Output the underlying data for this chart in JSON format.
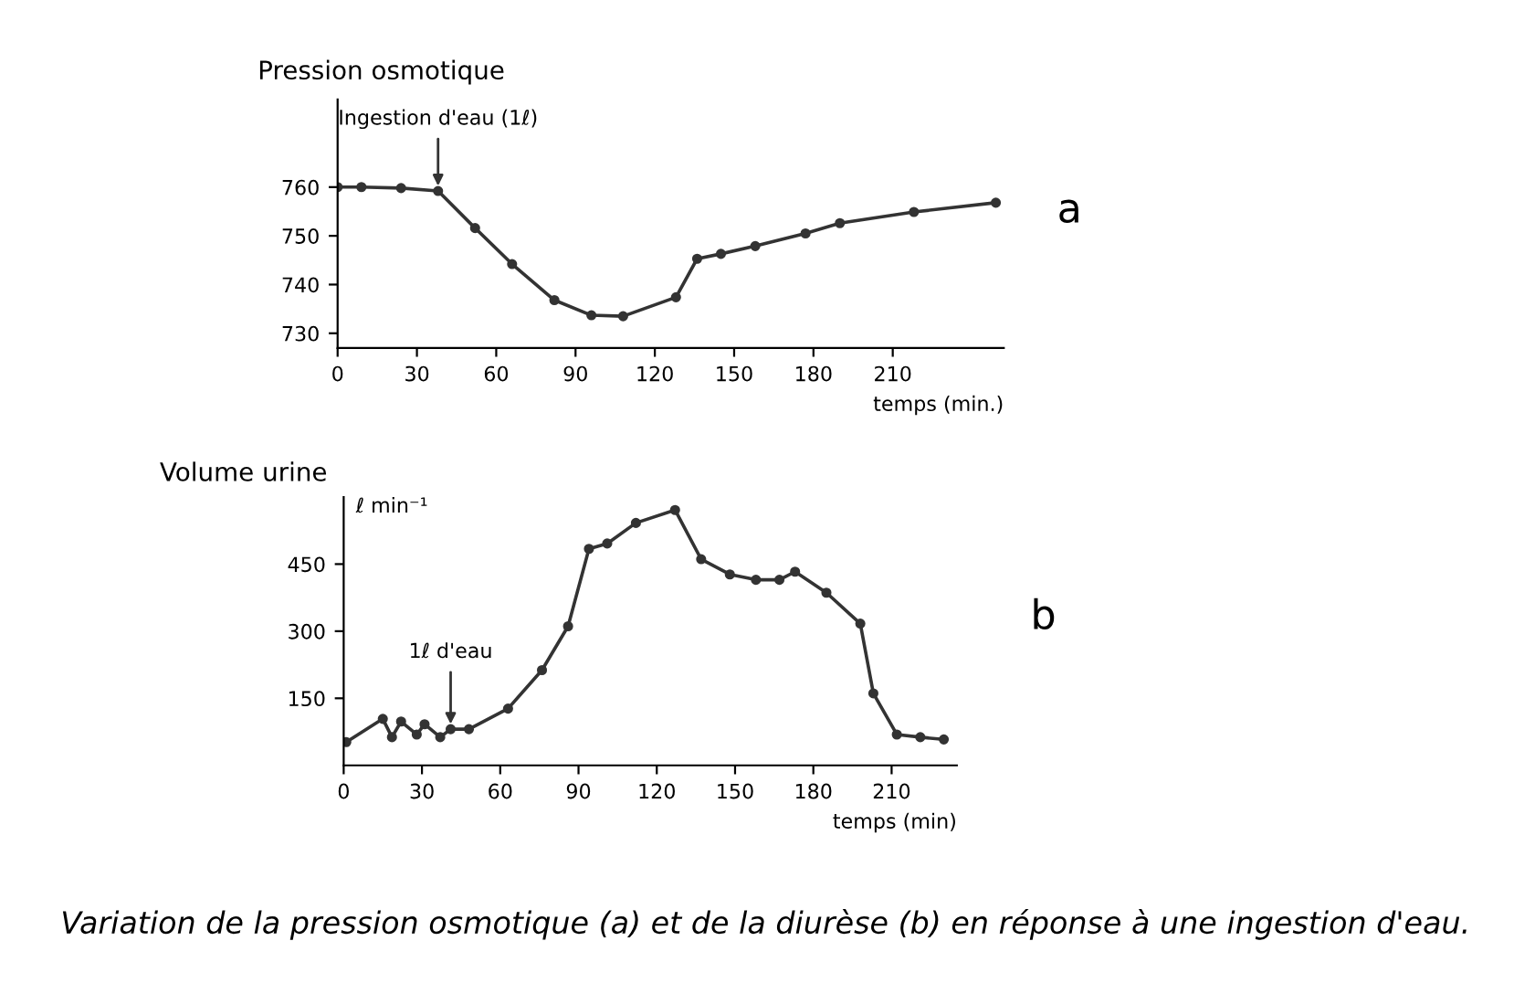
{
  "chart_data": [
    {
      "type": "line",
      "title": "Pression osmotique",
      "xlabel": "temps (min.)",
      "marker": "circle",
      "line_style": "solid",
      "grid": false,
      "xlim": [
        0,
        252
      ],
      "ylim": [
        727,
        778
      ],
      "xticks": [
        0,
        30,
        60,
        90,
        120,
        150,
        180,
        210
      ],
      "yticks": [
        730,
        740,
        750,
        760
      ],
      "series": [
        {
          "color": "#333333",
          "x": [
            0,
            9,
            24,
            38,
            52,
            66,
            82,
            96,
            108,
            128,
            136,
            145,
            158,
            177,
            190,
            218,
            249
          ],
          "values": [
            760,
            760,
            759.8,
            759.2,
            751.6,
            744.2,
            736.8,
            733.7,
            733.5,
            737.4,
            745.3,
            746.3,
            747.9,
            750.5,
            752.6,
            754.9,
            756.8
          ]
        }
      ],
      "annotations": [
        {
          "text": "Ingestion d'eau (1ℓ)",
          "x": 38,
          "y": 759.2
        },
        "a"
      ]
    },
    {
      "type": "line",
      "title": "Volume urine",
      "xlabel": "temps (min)",
      "ylabel": "ℓ min⁻¹",
      "marker": "circle",
      "line_style": "solid",
      "grid": false,
      "xlim": [
        0,
        235
      ],
      "ylim": [
        0,
        600
      ],
      "xticks": [
        0,
        30,
        60,
        90,
        120,
        150,
        180,
        210
      ],
      "yticks": [
        150,
        300,
        450
      ],
      "series": [
        {
          "color": "#333333",
          "x": [
            1,
            15,
            18.5,
            22,
            28,
            31,
            37,
            41,
            48,
            63,
            76,
            86,
            94,
            101,
            112,
            127,
            137,
            148,
            158,
            167,
            173,
            185,
            198,
            203,
            212,
            221,
            230
          ],
          "values": [
            52,
            104,
            63,
            98,
            69,
            92,
            63,
            81,
            81,
            127,
            213,
            311,
            484,
            496,
            542,
            571,
            461,
            427,
            415,
            415,
            433,
            386,
            317,
            161,
            69,
            63,
            58
          ]
        }
      ],
      "annotations": [
        {
          "text": "1ℓ d'eau",
          "x": 41,
          "y": 81
        },
        "b",
        "Variation de la pression osmotique (a) et de la diurèse (b) en réponse à une ingestion d'eau."
      ]
    }
  ]
}
